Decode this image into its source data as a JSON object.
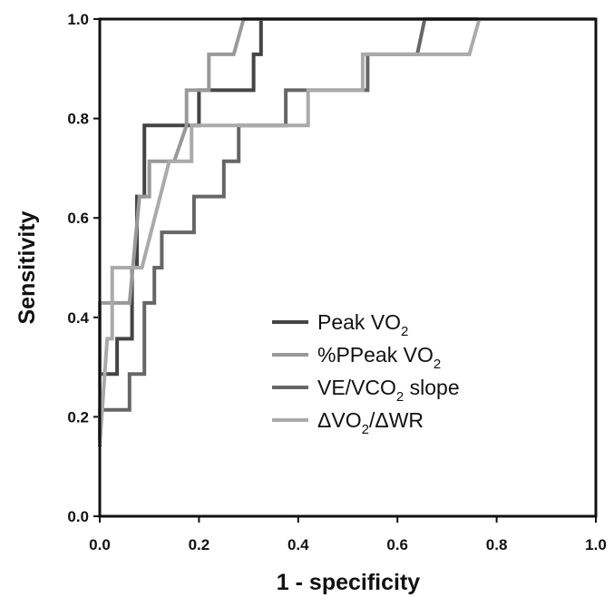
{
  "chart_data": {
    "type": "line",
    "title": "",
    "xlabel": "1 - specificity",
    "ylabel": "Sensitivity",
    "xlim": [
      0,
      1
    ],
    "ylim": [
      0,
      1
    ],
    "x_ticks": [
      "0.0",
      "0.2",
      "0.4",
      "0.6",
      "0.8",
      "1.0"
    ],
    "y_ticks": [
      "0.0",
      "0.2",
      "0.4",
      "0.6",
      "0.8",
      "1.0"
    ],
    "grid": false,
    "legend_position": "center-right",
    "series": [
      {
        "name": "Peak VO2",
        "legend": {
          "main": "Peak VO",
          "sub": "2",
          "tail": ""
        },
        "color": "#444444",
        "points": [
          [
            0.0,
            0.14
          ],
          [
            0.0,
            0.286
          ],
          [
            0.035,
            0.286
          ],
          [
            0.035,
            0.357
          ],
          [
            0.065,
            0.357
          ],
          [
            0.065,
            0.5
          ],
          [
            0.075,
            0.5
          ],
          [
            0.075,
            0.643
          ],
          [
            0.09,
            0.643
          ],
          [
            0.09,
            0.786
          ],
          [
            0.2,
            0.786
          ],
          [
            0.2,
            0.857
          ],
          [
            0.31,
            0.857
          ],
          [
            0.31,
            0.929
          ],
          [
            0.325,
            0.929
          ],
          [
            0.325,
            1.0
          ],
          [
            1.0,
            1.0
          ]
        ]
      },
      {
        "name": "%PPeak VO2",
        "legend": {
          "main": "%PPeak VO",
          "sub": "2",
          "tail": ""
        },
        "color": "#999999",
        "points": [
          [
            0.0,
            0.143
          ],
          [
            0.0,
            0.429
          ],
          [
            0.06,
            0.429
          ],
          [
            0.08,
            0.643
          ],
          [
            0.1,
            0.643
          ],
          [
            0.1,
            0.714
          ],
          [
            0.15,
            0.714
          ],
          [
            0.175,
            0.786
          ],
          [
            0.175,
            0.857
          ],
          [
            0.22,
            0.857
          ],
          [
            0.22,
            0.929
          ],
          [
            0.27,
            0.929
          ],
          [
            0.29,
            1.0
          ],
          [
            1.0,
            1.0
          ]
        ]
      },
      {
        "name": "VE/VCO2 slope",
        "legend": {
          "main": "VE/VCO",
          "sub": "2",
          "tail": " slope"
        },
        "color": "#666666",
        "points": [
          [
            0.0,
            0.143
          ],
          [
            0.0,
            0.214
          ],
          [
            0.06,
            0.214
          ],
          [
            0.06,
            0.286
          ],
          [
            0.09,
            0.286
          ],
          [
            0.09,
            0.429
          ],
          [
            0.11,
            0.429
          ],
          [
            0.11,
            0.5
          ],
          [
            0.125,
            0.5
          ],
          [
            0.125,
            0.571
          ],
          [
            0.19,
            0.571
          ],
          [
            0.19,
            0.643
          ],
          [
            0.25,
            0.643
          ],
          [
            0.25,
            0.714
          ],
          [
            0.28,
            0.714
          ],
          [
            0.28,
            0.786
          ],
          [
            0.375,
            0.786
          ],
          [
            0.375,
            0.857
          ],
          [
            0.54,
            0.857
          ],
          [
            0.54,
            0.929
          ],
          [
            0.64,
            0.929
          ],
          [
            0.655,
            1.0
          ],
          [
            1.0,
            1.0
          ]
        ]
      },
      {
        "name": "ΔVO2/ΔWR",
        "legend": {
          "main": "ΔVO",
          "sub": "2",
          "tail": "/ΔWR"
        },
        "color": "#aaaaaa",
        "points": [
          [
            0.0,
            0.143
          ],
          [
            0.015,
            0.357
          ],
          [
            0.025,
            0.357
          ],
          [
            0.025,
            0.5
          ],
          [
            0.065,
            0.5
          ],
          [
            0.085,
            0.5
          ],
          [
            0.14,
            0.714
          ],
          [
            0.185,
            0.714
          ],
          [
            0.185,
            0.786
          ],
          [
            0.42,
            0.786
          ],
          [
            0.42,
            0.857
          ],
          [
            0.53,
            0.857
          ],
          [
            0.53,
            0.929
          ],
          [
            0.745,
            0.929
          ],
          [
            0.765,
            1.0
          ],
          [
            1.0,
            1.0
          ]
        ]
      }
    ]
  }
}
